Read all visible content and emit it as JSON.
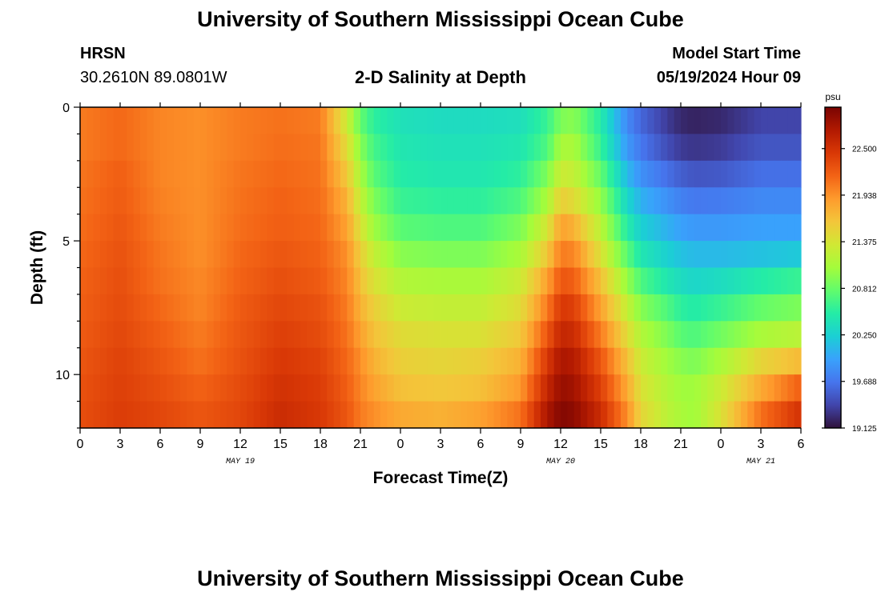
{
  "header": {
    "title": "University of Southern Mississippi Ocean Cube",
    "station": "HRSN",
    "coords": "30.2610N  89.0801W",
    "model_start_label": "Model Start Time",
    "model_start_value": "05/19/2024 Hour 09"
  },
  "footer": {
    "title": "University of Southern Mississippi Ocean Cube"
  },
  "colors": {
    "scale": [
      "#30123b",
      "#4145ab",
      "#4675ed",
      "#39a2fc",
      "#1bcfd4",
      "#24eca6",
      "#61fc6c",
      "#a4fc3b",
      "#d1e834",
      "#f3c63a",
      "#fe9b2d",
      "#f36315",
      "#d93806",
      "#b11901",
      "#7a0402"
    ]
  },
  "chart_data": {
    "type": "heatmap",
    "title": "2-D Salinity at Depth",
    "xlabel": "Forecast Time(Z)",
    "ylabel": "Depth (ft)",
    "x_range_hours": [
      0,
      54
    ],
    "x_ticks": [
      {
        "h": 0,
        "label": "0"
      },
      {
        "h": 3,
        "label": "3"
      },
      {
        "h": 6,
        "label": "6"
      },
      {
        "h": 9,
        "label": "9"
      },
      {
        "h": 12,
        "label": "12"
      },
      {
        "h": 15,
        "label": "15"
      },
      {
        "h": 18,
        "label": "18"
      },
      {
        "h": 21,
        "label": "21"
      },
      {
        "h": 24,
        "label": "0"
      },
      {
        "h": 27,
        "label": "3"
      },
      {
        "h": 30,
        "label": "6"
      },
      {
        "h": 33,
        "label": "9"
      },
      {
        "h": 36,
        "label": "12"
      },
      {
        "h": 39,
        "label": "15"
      },
      {
        "h": 42,
        "label": "18"
      },
      {
        "h": 45,
        "label": "21"
      },
      {
        "h": 48,
        "label": "0"
      },
      {
        "h": 51,
        "label": "3"
      },
      {
        "h": 54,
        "label": "6"
      }
    ],
    "date_labels": [
      {
        "h": 12,
        "label": "MAY 19"
      },
      {
        "h": 36,
        "label": "MAY 20"
      },
      {
        "h": 51,
        "label": "MAY 21"
      }
    ],
    "y_range": [
      0,
      12
    ],
    "y_ticks": [
      0,
      5,
      10
    ],
    "colorbar": {
      "unit": "psu",
      "min": 19.125,
      "max": 23.0,
      "ticks": [
        "19.125",
        "19.688",
        "20.250",
        "20.812",
        "21.375",
        "21.938",
        "22.500"
      ]
    },
    "depth_levels": [
      0,
      1,
      2,
      3,
      4,
      5,
      6,
      7,
      8,
      9,
      10,
      11
    ],
    "time_hours": [
      0,
      3,
      6,
      9,
      12,
      15,
      18,
      20,
      21,
      22,
      24,
      27,
      30,
      33,
      35,
      36,
      37,
      39,
      41,
      42,
      44,
      45,
      46,
      48,
      51,
      54
    ],
    "values": [
      [
        22.05,
        22.15,
        22.0,
        21.95,
        22.05,
        22.1,
        22.05,
        21.3,
        20.8,
        20.55,
        20.4,
        20.35,
        20.35,
        20.38,
        20.6,
        20.9,
        20.95,
        20.5,
        19.8,
        19.6,
        19.35,
        19.25,
        19.22,
        19.25,
        19.4,
        19.4
      ],
      [
        22.05,
        22.15,
        22.0,
        21.95,
        22.05,
        22.12,
        22.08,
        21.45,
        20.95,
        20.65,
        20.45,
        20.4,
        20.4,
        20.45,
        20.7,
        21.1,
        21.1,
        20.6,
        19.9,
        19.7,
        19.45,
        19.35,
        19.32,
        19.35,
        19.5,
        19.5
      ],
      [
        22.08,
        22.2,
        22.0,
        21.95,
        22.08,
        22.15,
        22.1,
        21.6,
        21.1,
        20.75,
        20.5,
        20.45,
        20.45,
        20.55,
        20.9,
        21.3,
        21.25,
        20.8,
        20.1,
        19.85,
        19.65,
        19.55,
        19.5,
        19.52,
        19.65,
        19.65
      ],
      [
        22.1,
        22.22,
        22.02,
        21.95,
        22.1,
        22.18,
        22.12,
        21.75,
        21.25,
        20.9,
        20.6,
        20.55,
        20.55,
        20.7,
        21.1,
        21.55,
        21.45,
        21.0,
        20.3,
        20.05,
        19.85,
        19.75,
        19.7,
        19.72,
        19.8,
        19.8
      ],
      [
        22.12,
        22.25,
        22.05,
        21.95,
        22.12,
        22.2,
        22.15,
        21.85,
        21.4,
        21.05,
        20.75,
        20.7,
        20.7,
        20.9,
        21.35,
        21.85,
        21.75,
        21.2,
        20.5,
        20.25,
        20.05,
        19.95,
        19.9,
        19.9,
        19.95,
        19.95
      ],
      [
        22.15,
        22.28,
        22.08,
        21.95,
        22.15,
        22.25,
        22.18,
        21.95,
        21.55,
        21.25,
        20.95,
        20.9,
        20.9,
        21.1,
        21.6,
        22.05,
        22.0,
        21.4,
        20.75,
        20.45,
        20.25,
        20.15,
        20.1,
        20.1,
        20.15,
        20.2
      ],
      [
        22.18,
        22.3,
        22.1,
        21.98,
        22.18,
        22.3,
        22.22,
        22.0,
        21.65,
        21.4,
        21.15,
        21.1,
        21.1,
        21.3,
        21.85,
        22.25,
        22.2,
        21.65,
        21.0,
        20.7,
        20.45,
        20.35,
        20.3,
        20.35,
        20.5,
        20.6
      ],
      [
        22.2,
        22.32,
        22.15,
        22.0,
        22.22,
        22.35,
        22.28,
        22.05,
        21.75,
        21.55,
        21.3,
        21.25,
        21.25,
        21.45,
        22.05,
        22.45,
        22.4,
        21.85,
        21.25,
        20.95,
        20.7,
        20.55,
        20.5,
        20.6,
        20.8,
        20.9
      ],
      [
        22.22,
        22.35,
        22.2,
        22.05,
        22.25,
        22.4,
        22.32,
        22.1,
        21.85,
        21.65,
        21.45,
        21.4,
        21.4,
        21.6,
        22.25,
        22.6,
        22.55,
        22.05,
        21.45,
        21.15,
        20.9,
        20.75,
        20.7,
        20.85,
        21.1,
        21.2
      ],
      [
        22.25,
        22.38,
        22.25,
        22.1,
        22.28,
        22.45,
        22.38,
        22.15,
        21.95,
        21.75,
        21.55,
        21.5,
        21.55,
        21.75,
        22.45,
        22.75,
        22.7,
        22.25,
        21.65,
        21.3,
        21.05,
        20.95,
        20.9,
        21.1,
        21.5,
        21.7
      ],
      [
        22.28,
        22.4,
        22.3,
        22.18,
        22.32,
        22.5,
        22.42,
        22.2,
        22.0,
        21.85,
        21.65,
        21.6,
        21.65,
        21.9,
        22.6,
        22.85,
        22.8,
        22.4,
        21.8,
        21.4,
        21.15,
        21.05,
        21.05,
        21.3,
        21.8,
        22.2
      ],
      [
        22.3,
        22.42,
        22.35,
        22.25,
        22.35,
        22.55,
        22.45,
        22.25,
        22.05,
        21.95,
        21.8,
        21.75,
        21.85,
        22.1,
        22.75,
        22.95,
        22.9,
        22.55,
        21.95,
        21.5,
        21.2,
        21.1,
        21.05,
        21.4,
        22.1,
        22.5
      ]
    ]
  }
}
